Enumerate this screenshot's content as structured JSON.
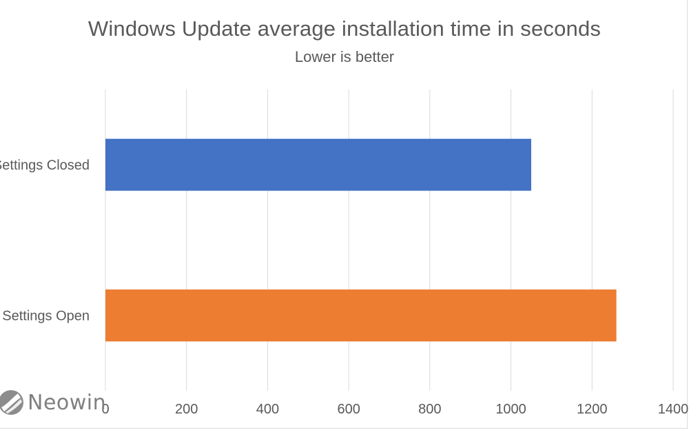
{
  "chart_data": {
    "type": "bar",
    "orientation": "horizontal",
    "title": "Windows Update average installation time in seconds",
    "subtitle": "Lower is better",
    "categories": [
      "Settings Closed",
      "Settings Open"
    ],
    "values": [
      1050,
      1260
    ],
    "colors": [
      "#4472c4",
      "#ed7d31"
    ],
    "xlim": [
      0,
      1400
    ],
    "xticks": [
      0,
      200,
      400,
      600,
      800,
      1000,
      1200,
      1400
    ],
    "xlabel": "",
    "ylabel": "",
    "grid": true,
    "legend": "none"
  },
  "watermark": {
    "text": "Neowin",
    "icon": "neowin-logo-icon"
  }
}
